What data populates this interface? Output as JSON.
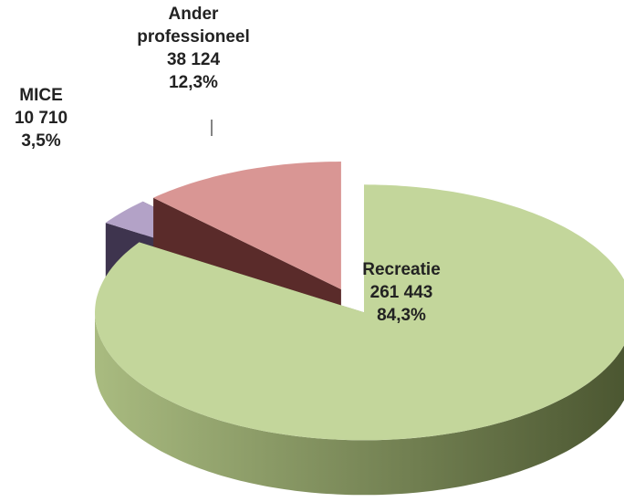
{
  "chart_data": {
    "type": "pie3d",
    "categories": [
      "Recreatie",
      "MICE",
      "Ander professioneel"
    ],
    "values": [
      261443,
      10710,
      38124
    ],
    "value_labels": [
      "261 443",
      "10 710",
      "38 124"
    ],
    "percent": [
      84.3,
      3.5,
      12.3
    ],
    "percent_labels": [
      "84,3%",
      "3,5%",
      "12,3%"
    ],
    "colors": [
      "#c3d69b",
      "#b3a2c7",
      "#d99694"
    ]
  }
}
